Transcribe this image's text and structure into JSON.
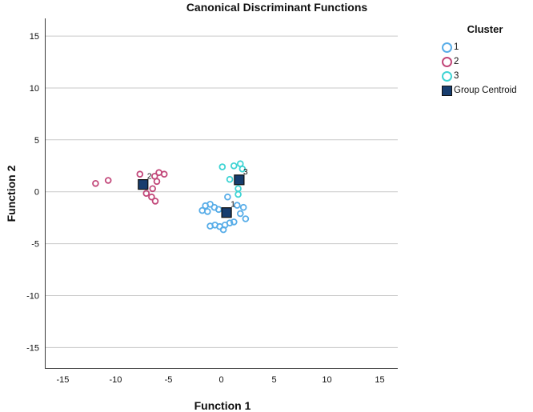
{
  "title": "Canonical Discriminant Functions",
  "legend": {
    "title": "Cluster",
    "items": [
      {
        "label": "1",
        "marker": "circle-icon",
        "color": "#58ade8"
      },
      {
        "label": "2",
        "marker": "circle-icon",
        "color": "#c2487a"
      },
      {
        "label": "3",
        "marker": "circle-icon",
        "color": "#3fd4d4"
      },
      {
        "label": "Group Centroid",
        "marker": "square-icon",
        "color": "#173d6e"
      }
    ]
  },
  "chart_data": {
    "type": "scatter",
    "title": "Canonical Discriminant Functions",
    "xlabel": "Function 1",
    "ylabel": "Function 2",
    "xlim": [
      -16.7,
      16.7
    ],
    "ylim": [
      -17.05,
      16.7
    ],
    "xticks": [
      -15,
      -10,
      -5,
      0,
      5,
      10,
      15
    ],
    "yticks": [
      -15,
      -10,
      -5,
      0,
      5,
      10,
      15
    ],
    "grid": "horizontal-only",
    "legend_position": "right",
    "colors": {
      "gridline": "#c9c9c9",
      "axis": "#3a3a3a",
      "centroid_fill": "#173d6e",
      "centroid_border": "#0d0d0d",
      "text": "#101010"
    },
    "series": [
      {
        "name": "1",
        "color": "#58ade8",
        "points": [
          [
            0.6,
            -0.5
          ],
          [
            -1.5,
            -1.35
          ],
          [
            -1.05,
            -1.2
          ],
          [
            -0.65,
            -1.5
          ],
          [
            -1.8,
            -1.8
          ],
          [
            -1.3,
            -1.9
          ],
          [
            -0.25,
            -1.7
          ],
          [
            1.5,
            -1.3
          ],
          [
            2.1,
            -1.5
          ],
          [
            1.8,
            -2.1
          ],
          [
            2.3,
            -2.6
          ],
          [
            -1.05,
            -3.3
          ],
          [
            -0.6,
            -3.2
          ],
          [
            -0.15,
            -3.35
          ],
          [
            0.35,
            -3.2
          ],
          [
            0.8,
            -3.0
          ],
          [
            1.2,
            -2.9
          ],
          [
            0.2,
            -3.65
          ]
        ]
      },
      {
        "name": "2",
        "color": "#c2487a",
        "points": [
          [
            -11.9,
            0.8
          ],
          [
            -10.7,
            1.1
          ],
          [
            -7.7,
            1.7
          ],
          [
            -6.3,
            1.5
          ],
          [
            -5.9,
            1.85
          ],
          [
            -5.4,
            1.7
          ],
          [
            -6.1,
            1.0
          ],
          [
            -6.5,
            0.3
          ],
          [
            -7.1,
            -0.15
          ],
          [
            -6.6,
            -0.5
          ],
          [
            -6.25,
            -0.9
          ]
        ]
      },
      {
        "name": "3",
        "color": "#3fd4d4",
        "points": [
          [
            0.1,
            2.4
          ],
          [
            1.2,
            2.5
          ],
          [
            1.8,
            2.7
          ],
          [
            2.0,
            2.2
          ],
          [
            0.8,
            1.2
          ],
          [
            1.6,
            0.3
          ],
          [
            1.6,
            -0.25
          ]
        ]
      }
    ],
    "centroids": [
      {
        "label": "1",
        "x": 0.5,
        "y": -2.0
      },
      {
        "label": "2",
        "x": -7.4,
        "y": 0.7
      },
      {
        "label": "3",
        "x": 1.7,
        "y": 1.15
      }
    ]
  }
}
